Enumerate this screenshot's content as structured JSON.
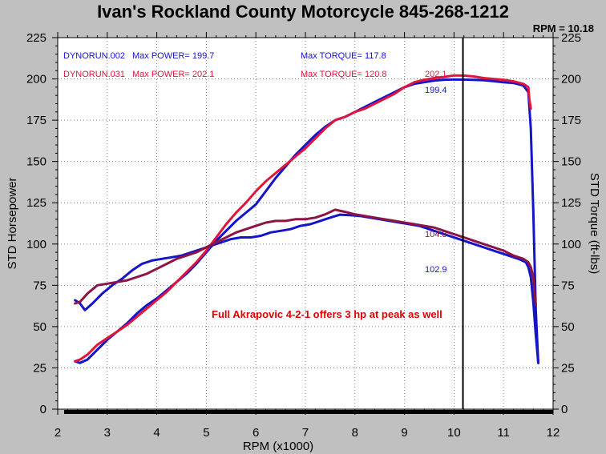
{
  "header": {
    "title": "Ivan's Rockland County Motorcycle  845-268-1212",
    "rpm_readout": "RPM = 10.18"
  },
  "colors": {
    "background": "#c0c0c0",
    "plot_bg": "#ffffff",
    "run002": "#1414c8",
    "run031": "#e0143c",
    "torque031": "#8c1446",
    "annotation": "#e00000"
  },
  "chart_data": {
    "type": "line",
    "xlabel": "RPM (x1000)",
    "ylabel_left": "STD Horsepower",
    "ylabel_right": "STD Torque (ft-lbs)",
    "xlim": [
      2,
      12
    ],
    "ylim": [
      0,
      225
    ],
    "x_ticks": [
      "2",
      "3",
      "4",
      "5",
      "6",
      "7",
      "8",
      "9",
      "10",
      "11",
      "12"
    ],
    "y_ticks": [
      "0",
      "25",
      "50",
      "75",
      "100",
      "125",
      "150",
      "175",
      "200",
      "225"
    ],
    "grid": true,
    "cursor_rpm": 10.18,
    "legend": [
      {
        "run": "DYNORUN.002",
        "power": "Max POWER= 199.7",
        "torque": "Max TORQUE= 117.8",
        "color": "#1414c8"
      },
      {
        "run": "DYNORUN.031",
        "power": "Max POWER= 202.1",
        "torque": "Max TORQUE= 120.8",
        "color": "#e0143c"
      }
    ],
    "annotation": "Full Akrapovic 4-2-1 offers 3 hp at peak as well",
    "cursor_labels": [
      {
        "text": "202.1",
        "color": "#e0143c"
      },
      {
        "text": "199.4",
        "color": "#1414c8"
      },
      {
        "text": "104.3",
        "color": "#8c1446"
      },
      {
        "text": "102.9",
        "color": "#1414c8"
      }
    ],
    "series": [
      {
        "name": "DYNORUN.002 Max POWER= 199.7",
        "color": "#1414c8",
        "x": [
          2.35,
          2.45,
          2.6,
          2.8,
          3.0,
          3.2,
          3.4,
          3.6,
          3.8,
          4.0,
          4.2,
          4.4,
          4.6,
          4.8,
          5.0,
          5.2,
          5.4,
          5.6,
          5.8,
          6.0,
          6.2,
          6.4,
          6.6,
          6.8,
          7.0,
          7.2,
          7.4,
          7.6,
          7.8,
          8.0,
          8.2,
          8.4,
          8.6,
          8.8,
          9.0,
          9.2,
          9.4,
          9.6,
          9.8,
          10.0,
          10.2,
          10.4,
          10.6,
          10.8,
          11.0,
          11.2,
          11.4,
          11.5,
          11.55,
          11.6,
          11.65,
          11.7
        ],
        "y": [
          29,
          28,
          30,
          36,
          42,
          47,
          52,
          58,
          63,
          67,
          72,
          77,
          82,
          88,
          95,
          102,
          108,
          114,
          119,
          124,
          132,
          140,
          147,
          154,
          160,
          166,
          171,
          175,
          177,
          180,
          183,
          186,
          189,
          192,
          195,
          197,
          198,
          199,
          199.5,
          199.7,
          199.6,
          199.4,
          199.2,
          198.6,
          198,
          197.5,
          196,
          192,
          170,
          120,
          60,
          28
        ]
      },
      {
        "name": "DYNORUN.031 Max POWER= 202.1",
        "color": "#e0143c",
        "x": [
          2.35,
          2.45,
          2.6,
          2.8,
          3.0,
          3.2,
          3.4,
          3.6,
          3.8,
          4.0,
          4.2,
          4.4,
          4.6,
          4.8,
          5.0,
          5.2,
          5.4,
          5.6,
          5.8,
          6.0,
          6.2,
          6.4,
          6.6,
          6.8,
          7.0,
          7.2,
          7.4,
          7.6,
          7.8,
          8.0,
          8.2,
          8.4,
          8.6,
          8.8,
          9.0,
          9.2,
          9.4,
          9.6,
          9.8,
          10.0,
          10.2,
          10.4,
          10.6,
          10.8,
          11.0,
          11.2,
          11.4,
          11.5,
          11.52,
          11.55
        ],
        "y": [
          29,
          30,
          33,
          39,
          43,
          47,
          51,
          56,
          61,
          66,
          71,
          77,
          83,
          89,
          96,
          104,
          112,
          119,
          125,
          132,
          138,
          143,
          148,
          153,
          158,
          164,
          170,
          175,
          177,
          180,
          182,
          185,
          188,
          191,
          195,
          198,
          199.5,
          200.5,
          201.2,
          202.1,
          202,
          201.5,
          200.5,
          200,
          199.5,
          198.5,
          197,
          195,
          188,
          182
        ]
      },
      {
        "name": "DYNORUN.002 Max TORQUE= 117.8",
        "color": "#1414c8",
        "x": [
          2.35,
          2.45,
          2.55,
          2.7,
          2.9,
          3.1,
          3.3,
          3.5,
          3.7,
          3.9,
          4.1,
          4.3,
          4.5,
          4.7,
          4.9,
          5.1,
          5.3,
          5.5,
          5.7,
          5.9,
          6.1,
          6.3,
          6.5,
          6.7,
          6.9,
          7.1,
          7.3,
          7.5,
          7.7,
          7.9,
          8.1,
          8.3,
          8.5,
          8.7,
          8.9,
          9.1,
          9.3,
          9.5,
          9.7,
          9.9,
          10.1,
          10.3,
          10.5,
          10.7,
          10.9,
          11.1,
          11.3,
          11.45,
          11.5,
          11.55,
          11.6,
          11.65,
          11.7
        ],
        "y": [
          66,
          64,
          60,
          64,
          70,
          75,
          79,
          84,
          88,
          90,
          91,
          92,
          93,
          95,
          97,
          99,
          101,
          103,
          104,
          104,
          105,
          107,
          108,
          109,
          111,
          112,
          114,
          116,
          117.8,
          117.5,
          117,
          116,
          115,
          114,
          113,
          112,
          111,
          109,
          107,
          105,
          103,
          101,
          99,
          97,
          95,
          93,
          91,
          89,
          86,
          80,
          65,
          45,
          28
        ]
      },
      {
        "name": "DYNORUN.031 Max TORQUE= 120.8",
        "color": "#8c1446",
        "x": [
          2.35,
          2.45,
          2.6,
          2.8,
          3.0,
          3.2,
          3.4,
          3.6,
          3.8,
          4.0,
          4.2,
          4.4,
          4.6,
          4.8,
          5.0,
          5.2,
          5.4,
          5.6,
          5.8,
          6.0,
          6.2,
          6.4,
          6.6,
          6.8,
          7.0,
          7.2,
          7.4,
          7.6,
          7.8,
          8.0,
          8.2,
          8.4,
          8.6,
          8.8,
          9.0,
          9.2,
          9.4,
          9.6,
          9.8,
          10.0,
          10.2,
          10.4,
          10.6,
          10.8,
          11.0,
          11.2,
          11.4,
          11.5,
          11.55,
          11.6,
          11.65
        ],
        "y": [
          64,
          65,
          70,
          75,
          76,
          77,
          78,
          80,
          82,
          85,
          88,
          91,
          93,
          95,
          98,
          101,
          104,
          107,
          109,
          111,
          113,
          114,
          114,
          115,
          115,
          116,
          118,
          120.8,
          119.5,
          118,
          117,
          116,
          115,
          114,
          113,
          112,
          111,
          110,
          108,
          106,
          104,
          102,
          100,
          98,
          96,
          93,
          91,
          89,
          86,
          80,
          63
        ]
      }
    ]
  }
}
